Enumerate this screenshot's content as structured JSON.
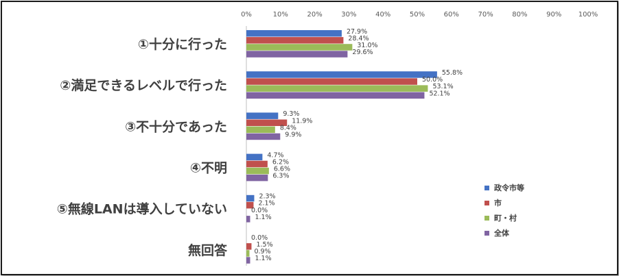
{
  "chart_data": {
    "type": "bar",
    "orientation": "horizontal",
    "categories": [
      "①十分に行った",
      "②満足できるレベルで行った",
      "③不十分であった",
      "④不明",
      "⑤無線LANは導入していない",
      "無回答"
    ],
    "series": [
      {
        "name": "政令市等",
        "color": "#4472C4",
        "values": [
          27.9,
          55.8,
          9.3,
          4.7,
          2.3,
          0.0
        ]
      },
      {
        "name": "市",
        "color": "#C0504D",
        "values": [
          28.4,
          50.0,
          11.9,
          6.2,
          2.1,
          1.5
        ]
      },
      {
        "name": "町・村",
        "color": "#9BBB59",
        "values": [
          31.0,
          53.1,
          8.4,
          6.6,
          0.0,
          0.9
        ]
      },
      {
        "name": "全体",
        "color": "#8064A2",
        "values": [
          29.6,
          52.1,
          9.9,
          6.3,
          1.1,
          1.1
        ]
      }
    ],
    "xticks": [
      "0%",
      "10%",
      "20%",
      "30%",
      "40%",
      "50%",
      "60%",
      "70%",
      "80%",
      "90%",
      "100%"
    ],
    "xlim": [
      0,
      100
    ],
    "unit": "%",
    "legend_position": "right",
    "grid": false
  }
}
